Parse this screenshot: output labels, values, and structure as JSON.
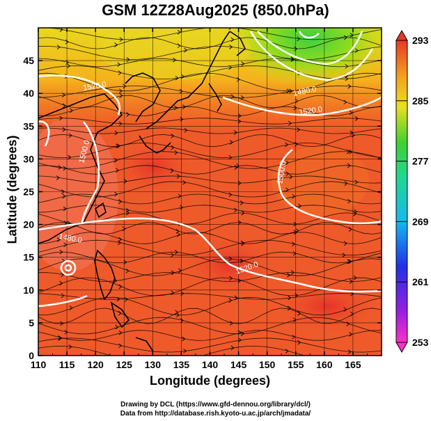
{
  "title": "GSM 12Z28Aug2025 (850.0hPa)",
  "xaxis": {
    "label": "Longitude (degrees)",
    "range": [
      110,
      170
    ],
    "ticks": [
      "110",
      "115",
      "120",
      "125",
      "130",
      "135",
      "140",
      "145",
      "150",
      "155",
      "160",
      "165"
    ]
  },
  "yaxis": {
    "label": "Latitude  (degrees)",
    "range": [
      0,
      50
    ],
    "ticks": [
      "0",
      "5",
      "10",
      "15",
      "20",
      "25",
      "30",
      "35",
      "40",
      "45"
    ]
  },
  "colorbar": {
    "range": [
      253,
      293
    ],
    "labels": [
      "293",
      "285",
      "277",
      "269",
      "261",
      "253"
    ]
  },
  "contour_labels": [
    "1520.0",
    "1500.0",
    "1480.0",
    "1520.0",
    "1520.0",
    "1500.0",
    "1480.0"
  ],
  "credits": {
    "line1": "Drawing by DCL (https://www.gfd-dennou.org/library/dcl/)",
    "line2": "Data from http://database.rish.kyoto-u.ac.jp/arch/jmadata/"
  },
  "colors": {
    "field_warm": "#f05a28",
    "field_hot": "#e8342a",
    "field_mid": "#f7a21b",
    "field_cool": "#7ed321",
    "contour": "#ffffff",
    "coast": "#000000"
  }
}
